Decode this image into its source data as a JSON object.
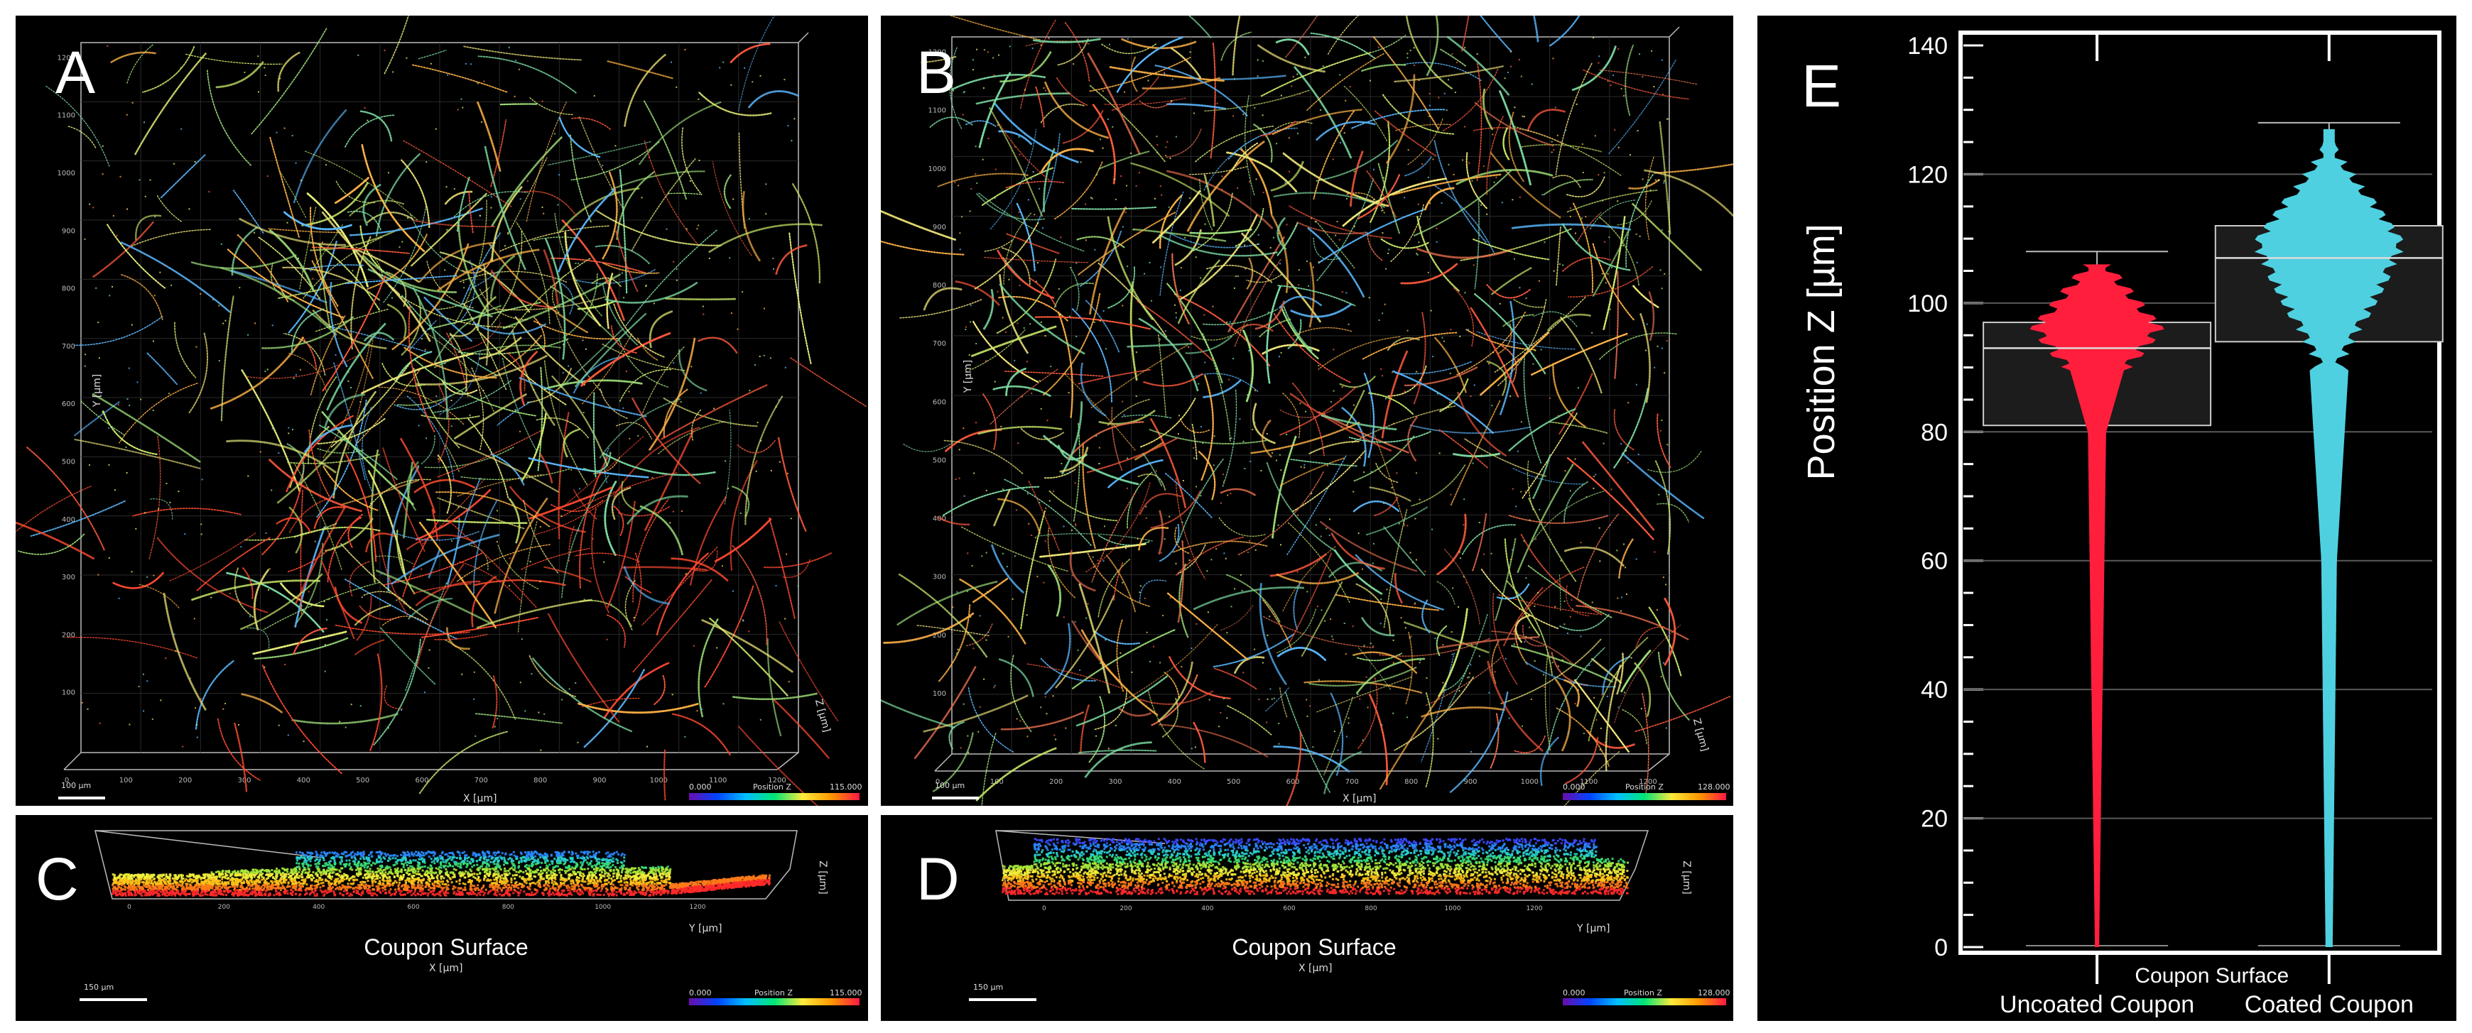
{
  "panels": {
    "a": {
      "letter": "A",
      "x_axis_label": "X [µm]",
      "y_axis_label": "Y [µm]",
      "z_axis_label": "Z [µm]",
      "scale_label": "100 µm",
      "colorbar_title": "Position Z",
      "colorbar_min": "0.000",
      "colorbar_max": "115.000",
      "x_ticks": [
        "0",
        "100",
        "200",
        "300",
        "400",
        "500",
        "600",
        "700",
        "800",
        "900",
        "1000",
        "1100",
        "1200"
      ],
      "y_ticks": [
        "100",
        "200",
        "300",
        "400",
        "500",
        "600",
        "700",
        "800",
        "900",
        "1000",
        "1100",
        "1200"
      ]
    },
    "b": {
      "letter": "B",
      "x_axis_label": "X [µm]",
      "y_axis_label": "Y [µm]",
      "z_axis_label": "Z [µm]",
      "scale_label": "100 µm",
      "colorbar_title": "Position Z",
      "colorbar_min": "0.000",
      "colorbar_max": "128.000",
      "x_ticks": [
        "0",
        "100",
        "200",
        "300",
        "400",
        "500",
        "600",
        "700",
        "800",
        "900",
        "1000",
        "1100",
        "1200"
      ],
      "y_ticks": [
        "100",
        "200",
        "300",
        "400",
        "500",
        "600",
        "700",
        "800",
        "900",
        "1000",
        "1100",
        "1200"
      ]
    },
    "c": {
      "letter": "C",
      "surface_label": "Coupon Surface",
      "x_axis_label": "X [µm]",
      "y_axis_label": "Y [µm]",
      "z_axis_label": "Z [µm]",
      "scale_label": "150 µm",
      "colorbar_title": "Position Z",
      "colorbar_min": "0.000",
      "colorbar_max": "115.000",
      "x_ticks": [
        "0",
        "200",
        "400",
        "600",
        "800",
        "1000",
        "1200"
      ]
    },
    "d": {
      "letter": "D",
      "surface_label": "Coupon Surface",
      "x_axis_label": "X [µm]",
      "y_axis_label": "Y [µm]",
      "z_axis_label": "Z [µm]",
      "scale_label": "150 µm",
      "colorbar_title": "Position Z",
      "colorbar_min": "0.000",
      "colorbar_max": "128.000",
      "x_ticks": [
        "0",
        "200",
        "400",
        "600",
        "800",
        "1000",
        "1200"
      ]
    },
    "e": {
      "letter": "E",
      "surface_label": "Coupon Surface"
    }
  },
  "chart_data": {
    "type": "violin",
    "ylabel": "Position Z [µm]",
    "ylim": [
      0,
      140
    ],
    "yticks": [
      0,
      20,
      40,
      60,
      80,
      100,
      120,
      140
    ],
    "grid": true,
    "categories": [
      "Uncoated Coupon",
      "Coated Coupon"
    ],
    "series": [
      {
        "name": "Uncoated Coupon",
        "color": "#ff1f3d",
        "whisker_low": 0,
        "q1": 81,
        "median": 93,
        "q3": 97,
        "whisker_high": 108,
        "max": 106
      },
      {
        "name": "Coated Coupon",
        "color": "#4fd0e0",
        "whisker_low": 0,
        "q1": 94,
        "median": 107,
        "q3": 112,
        "whisker_high": 128,
        "max": 127
      }
    ],
    "annotation": "Coupon Surface"
  },
  "colors": {
    "background": "#000000",
    "uncoated": "#ff1f3d",
    "coated": "#4fd0e0",
    "frame": "#ffffff"
  }
}
